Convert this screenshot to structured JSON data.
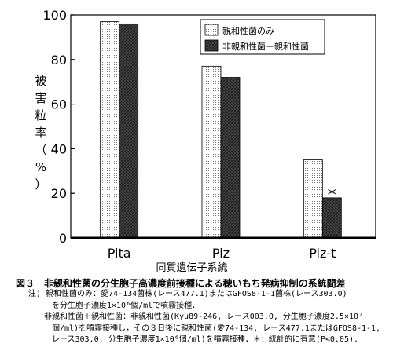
{
  "chart_data": {
    "type": "bar",
    "categories": [
      "Pita",
      "Piz",
      "Piz-t"
    ],
    "series": [
      {
        "name": "親和性菌のみ",
        "values": [
          97,
          77,
          35
        ],
        "pattern": "dots"
      },
      {
        "name": "非親和性菌＋親和性菌",
        "values": [
          96,
          72,
          18
        ],
        "pattern": "dark-hatch"
      }
    ],
    "yticks": [
      0,
      20,
      40,
      60,
      80,
      100
    ],
    "ylim": [
      0,
      100
    ],
    "ylabel": [
      "被",
      "害",
      "粒",
      "率",
      "（",
      "%",
      "）"
    ],
    "xlabel": "同質遺伝子系統",
    "annotation": "＊",
    "legend_position": "top-right",
    "colors": {
      "dots": "#ffffff",
      "dark": "#3a3a3a",
      "axis": "#000000",
      "bar_edge": "#000000"
    }
  },
  "caption": "図３　非親和性菌の分生胞子高濃度前接種による穂いもち発病抑制の系統間差",
  "notes": [
    "注) 親和性菌のみ：愛74-134菌株(レース477.1)またはGFOS8-1-1菌株(レース303.0)",
    "　　　を分生胞子濃度1×10⁶個/mlで噴霧接種．",
    "　　非親和性菌＋親和性菌：非親和性菌(Kyu89-246, レース003.0, 分生胞子濃度2.5×10⁷",
    "　　　個/ml)を噴霧接種し，その３日後に親和性菌(愛74-134, レース477.1またはGFOS8-1-1,",
    "　　　レース303.0, 分生胞子濃度1×10⁶個/ml)を噴霧接種．＊：統計的に有意(P<0.05)."
  ]
}
